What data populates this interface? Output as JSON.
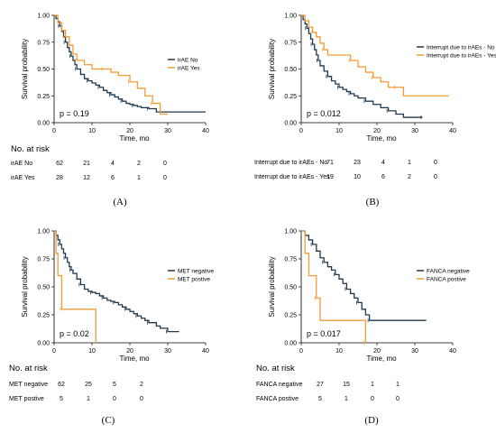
{
  "colors": {
    "navy": "#1f3a4f",
    "orange": "#f39c34"
  },
  "chart_data": [
    {
      "type": "line",
      "panel_label": "(A)",
      "ylabel": "Survival probability",
      "xlabel": "Time, mo",
      "xlim": [
        0,
        40
      ],
      "ylim": [
        0,
        1
      ],
      "xticks": [
        "0",
        "10",
        "20",
        "30",
        "40"
      ],
      "yticks": [
        "0.00",
        "0.25",
        "0.50",
        "0.75",
        "1.00"
      ],
      "pvalue": "p = 0.19",
      "legend_position": "right",
      "series": [
        {
          "name": "irAE No",
          "color": "#1f3a4f",
          "x": [
            0,
            0.5,
            1,
            1.5,
            2,
            2.5,
            3,
            3.5,
            4,
            4.5,
            5,
            5.5,
            6,
            7,
            8,
            9,
            10,
            11,
            12,
            13,
            14,
            15,
            16,
            17,
            18,
            19,
            20,
            21,
            22,
            23,
            25,
            27,
            40
          ],
          "y": [
            1,
            0.97,
            0.94,
            0.9,
            0.85,
            0.8,
            0.75,
            0.7,
            0.66,
            0.62,
            0.58,
            0.54,
            0.5,
            0.45,
            0.41,
            0.39,
            0.37,
            0.35,
            0.33,
            0.3,
            0.28,
            0.26,
            0.24,
            0.22,
            0.2,
            0.18,
            0.17,
            0.16,
            0.15,
            0.14,
            0.13,
            0.1,
            0.1
          ]
        },
        {
          "name": "irAE Yes",
          "color": "#f39c34",
          "x": [
            0,
            1,
            2,
            3,
            4,
            5,
            6,
            8,
            10,
            13,
            15,
            17,
            20,
            22,
            24,
            26,
            28,
            30
          ],
          "y": [
            1,
            0.93,
            0.86,
            0.8,
            0.72,
            0.64,
            0.58,
            0.54,
            0.5,
            0.5,
            0.47,
            0.44,
            0.38,
            0.32,
            0.25,
            0.18,
            0.08,
            0.08
          ]
        }
      ],
      "risk_table": {
        "title": "No. at risk",
        "rows": [
          {
            "label": "irAE No",
            "values": [
              "62",
              "21",
              "4",
              "2",
              "0"
            ]
          },
          {
            "label": "irAE Yes",
            "values": [
              "28",
              "12",
              "6",
              "1",
              "0"
            ]
          }
        ]
      }
    },
    {
      "type": "line",
      "panel_label": "(B)",
      "ylabel": "Survival probability",
      "xlabel": "Time, mo",
      "xlim": [
        0,
        40
      ],
      "ylim": [
        0,
        1
      ],
      "xticks": [
        "0",
        "10",
        "20",
        "30",
        "40"
      ],
      "yticks": [
        "0.00",
        "0.25",
        "0.50",
        "0.75",
        "1.00"
      ],
      "pvalue": "p = 0.012",
      "legend_position": "right",
      "series": [
        {
          "name": "Interrupt due to irAEs - No",
          "color": "#1f3a4f",
          "x": [
            0,
            0.5,
            1,
            1.5,
            2,
            2.5,
            3,
            3.5,
            4,
            4.5,
            5,
            6,
            7,
            8,
            9,
            10,
            11,
            12,
            13,
            14,
            15,
            17,
            19,
            21,
            23,
            25,
            27,
            32
          ],
          "y": [
            1,
            0.96,
            0.92,
            0.88,
            0.83,
            0.78,
            0.73,
            0.68,
            0.63,
            0.58,
            0.53,
            0.48,
            0.43,
            0.39,
            0.36,
            0.33,
            0.31,
            0.29,
            0.27,
            0.25,
            0.23,
            0.2,
            0.17,
            0.14,
            0.11,
            0.08,
            0.05,
            0.05
          ]
        },
        {
          "name": "Interrupt due to irAEs - Yes",
          "color": "#f39c34",
          "x": [
            0,
            1,
            2,
            3,
            4,
            5,
            6,
            7,
            10,
            13,
            15,
            17,
            19,
            21,
            23,
            25,
            27,
            39
          ],
          "y": [
            1,
            0.95,
            0.89,
            0.84,
            0.8,
            0.74,
            0.68,
            0.63,
            0.63,
            0.58,
            0.52,
            0.47,
            0.42,
            0.38,
            0.33,
            0.33,
            0.25,
            0.25
          ]
        }
      ],
      "risk_table": {
        "title": "",
        "rows": [
          {
            "label": "Interrupt due to irAEs - No",
            "values": [
              "71",
              "23",
              "4",
              "1",
              "0"
            ]
          },
          {
            "label": "Interrupt due to irAEs - Yes",
            "values": [
              "19",
              "10",
              "6",
              "2",
              "0"
            ]
          }
        ]
      }
    },
    {
      "type": "line",
      "panel_label": "(C)",
      "ylabel": "Survival probability",
      "xlabel": "Time, mo",
      "xlim": [
        0,
        40
      ],
      "ylim": [
        0,
        1
      ],
      "xticks": [
        "0",
        "10",
        "20",
        "30",
        "40"
      ],
      "yticks": [
        "0.00",
        "0.25",
        "0.50",
        "0.75",
        "1.00"
      ],
      "pvalue": "p = 0.02",
      "legend_position": "right",
      "series": [
        {
          "name": "MET negative",
          "color": "#1f3a4f",
          "x": [
            0,
            0.5,
            1,
            1.5,
            2,
            2.5,
            3,
            3.5,
            4,
            4.5,
            5,
            6,
            7,
            8,
            9,
            10,
            11,
            12,
            13,
            14,
            15,
            16,
            17,
            18,
            19,
            20,
            21,
            22,
            23,
            24,
            25,
            27,
            28,
            30,
            33
          ],
          "y": [
            1,
            0.96,
            0.92,
            0.88,
            0.84,
            0.8,
            0.76,
            0.72,
            0.68,
            0.65,
            0.62,
            0.57,
            0.52,
            0.48,
            0.46,
            0.45,
            0.44,
            0.42,
            0.4,
            0.38,
            0.37,
            0.36,
            0.34,
            0.32,
            0.3,
            0.28,
            0.26,
            0.24,
            0.22,
            0.2,
            0.18,
            0.15,
            0.13,
            0.1,
            0.1
          ]
        },
        {
          "name": "MET postive",
          "color": "#f39c34",
          "x": [
            0,
            0.5,
            1,
            2,
            3,
            11
          ],
          "y": [
            1,
            0.8,
            0.6,
            0.3,
            0.3,
            0
          ]
        }
      ],
      "risk_table": {
        "title": "No. at risk",
        "rows": [
          {
            "label": "MET negative",
            "values": [
              "62",
              "25",
              "5",
              "2"
            ]
          },
          {
            "label": "MET postive",
            "values": [
              "5",
              "1",
              "0",
              "0"
            ]
          }
        ]
      }
    },
    {
      "type": "line",
      "panel_label": "(D)",
      "ylabel": "Survival probability",
      "xlabel": "Time, mo",
      "xlim": [
        0,
        40
      ],
      "ylim": [
        0,
        1
      ],
      "xticks": [
        "0",
        "10",
        "20",
        "30",
        "40"
      ],
      "yticks": [
        "0.00",
        "0.25",
        "0.50",
        "0.75",
        "1.00"
      ],
      "pvalue": "p = 0.017",
      "legend_position": "right",
      "series": [
        {
          "name": "FANCA negative",
          "color": "#1f3a4f",
          "x": [
            0,
            1,
            2,
            3,
            4,
            5,
            6,
            7,
            8,
            9,
            10,
            11,
            12,
            13,
            14,
            15,
            16,
            17,
            18,
            33
          ],
          "y": [
            1,
            0.96,
            0.92,
            0.88,
            0.82,
            0.76,
            0.72,
            0.68,
            0.65,
            0.61,
            0.57,
            0.53,
            0.48,
            0.44,
            0.4,
            0.36,
            0.3,
            0.25,
            0.2,
            0.2
          ]
        },
        {
          "name": "FANCA postive",
          "color": "#f39c34",
          "x": [
            0,
            1,
            2,
            4,
            5,
            16,
            17
          ],
          "y": [
            1,
            0.8,
            0.6,
            0.4,
            0.2,
            0.2,
            0
          ]
        }
      ],
      "risk_table": {
        "title": "No. at risk",
        "rows": [
          {
            "label": "FANCA negative",
            "values": [
              "27",
              "15",
              "1",
              "1"
            ]
          },
          {
            "label": "FANCA postive",
            "values": [
              "5",
              "1",
              "0",
              "0"
            ]
          }
        ]
      }
    }
  ]
}
